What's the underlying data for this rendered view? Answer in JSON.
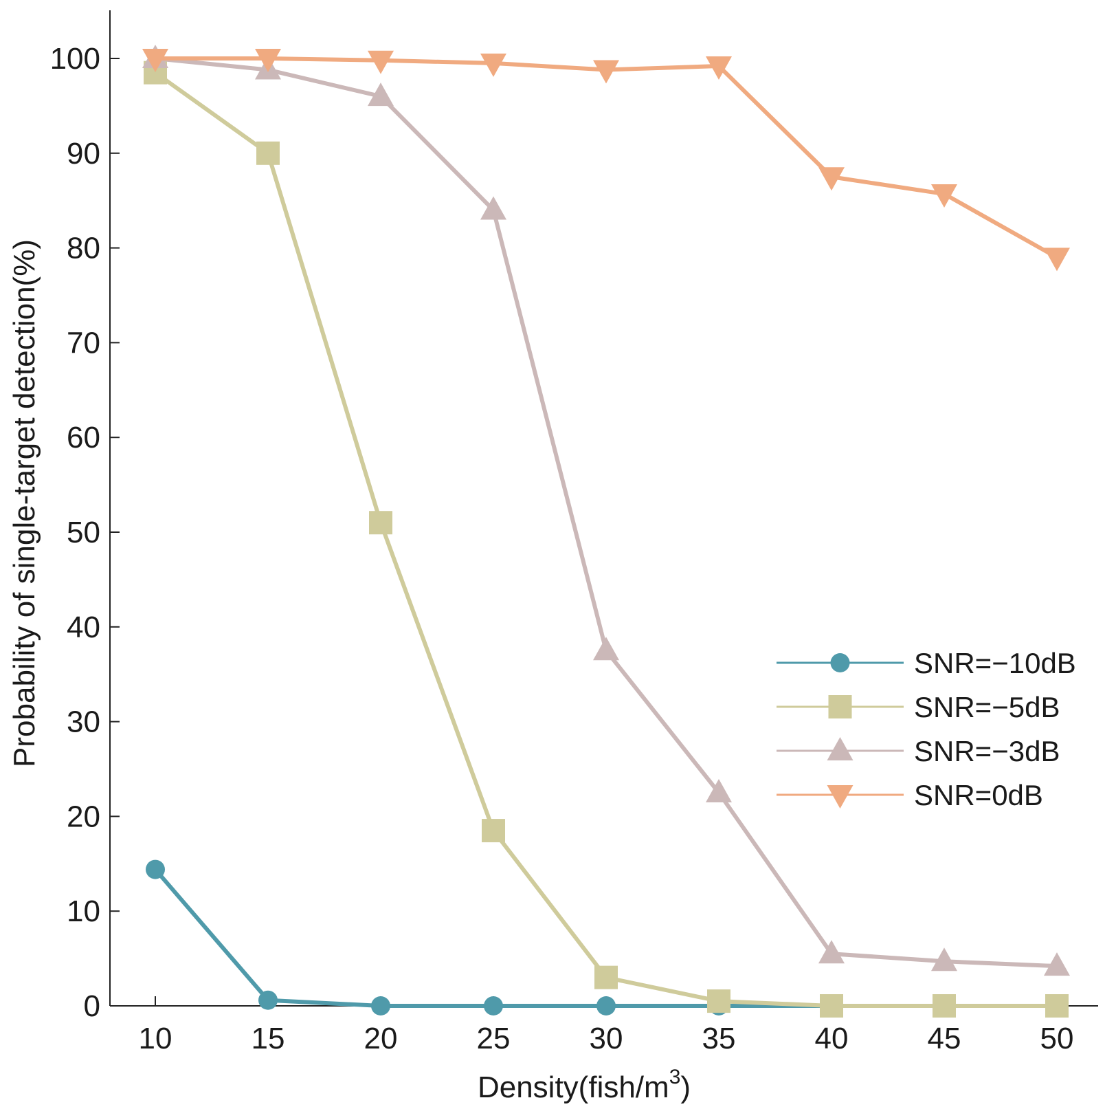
{
  "chart_data": {
    "type": "line",
    "title": "",
    "xlabel": "Density(fish/m",
    "xlabel_sup": "3",
    "xlabel_suffix": ")",
    "ylabel": "Probability of single-target detection(%)",
    "x": [
      10,
      15,
      20,
      25,
      30,
      35,
      40,
      45,
      50
    ],
    "xticks": [
      "10",
      "15",
      "20",
      "25",
      "30",
      "35",
      "40",
      "45",
      "50"
    ],
    "yticks": [
      "0",
      "10",
      "20",
      "30",
      "40",
      "50",
      "60",
      "70",
      "80",
      "90",
      "100"
    ],
    "xlim": [
      8,
      52
    ],
    "ylim": [
      0,
      105
    ],
    "grid": false,
    "legend_position": "center-right",
    "series": [
      {
        "name": "SNR=−10dB",
        "marker": "circle",
        "color": "#4f9aaa",
        "values": [
          14.4,
          0.6,
          0,
          0,
          0,
          0,
          0,
          0,
          0
        ]
      },
      {
        "name": "SNR=−5dB",
        "marker": "square",
        "color": "#cfcb9b",
        "values": [
          98.5,
          90,
          51,
          18.5,
          3,
          0.5,
          0,
          0,
          0
        ]
      },
      {
        "name": "SNR=−3dB",
        "marker": "triangle-up",
        "color": "#cbb8b8",
        "values": [
          100,
          98.8,
          96,
          84,
          37.5,
          22.5,
          5.5,
          4.7,
          4.2
        ]
      },
      {
        "name": "SNR=0dB",
        "marker": "triangle-down",
        "color": "#f0aa80",
        "values": [
          100,
          100,
          99.8,
          99.5,
          98.8,
          99.2,
          87.5,
          85.7,
          79
        ]
      }
    ]
  }
}
